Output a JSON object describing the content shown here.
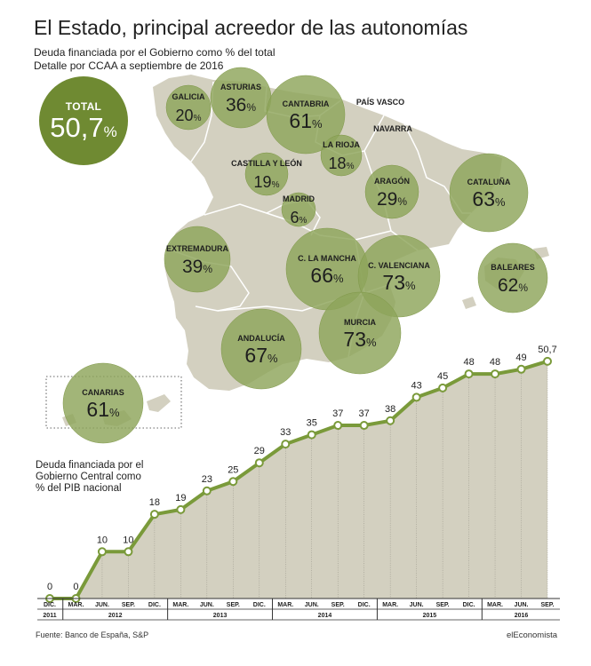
{
  "header": {
    "title": "El Estado, principal acreedor de las autonomías",
    "subtitle_line1": "Deuda financiada por el Gobierno como % del total",
    "subtitle_line2": "Detalle por CCAA a septiembre de 2016"
  },
  "total": {
    "label": "TOTAL",
    "value": "50,7",
    "unit": "%"
  },
  "map": {
    "colors": {
      "land": "#d3d0c0",
      "border": "#ffffff",
      "bubble": "#8ea55a",
      "bubble_stroke": "#7f9848",
      "plain_label": "#222222"
    },
    "regions": [
      {
        "name": "GALICIA",
        "value": "20",
        "unit": "%",
        "bubble": true
      },
      {
        "name": "ASTURIAS",
        "value": "36",
        "unit": "%",
        "bubble": true
      },
      {
        "name": "CANTABRIA",
        "value": "61",
        "unit": "%",
        "bubble": true
      },
      {
        "name": "PAÍS VASCO",
        "value": "",
        "unit": "",
        "bubble": false
      },
      {
        "name": "NAVARRA",
        "value": "",
        "unit": "",
        "bubble": false
      },
      {
        "name": "LA RIOJA",
        "value": "18",
        "unit": "%",
        "bubble": true
      },
      {
        "name": "CASTILLA Y LEÓN",
        "value": "19",
        "unit": "%",
        "bubble": true
      },
      {
        "name": "ARAGÓN",
        "value": "29",
        "unit": "%",
        "bubble": true
      },
      {
        "name": "CATALUÑA",
        "value": "63",
        "unit": "%",
        "bubble": true
      },
      {
        "name": "MADRID",
        "value": "6",
        "unit": "%",
        "bubble": true
      },
      {
        "name": "EXTREMADURA",
        "value": "39",
        "unit": "%",
        "bubble": true
      },
      {
        "name": "C. LA MANCHA",
        "value": "66",
        "unit": "%",
        "bubble": true
      },
      {
        "name": "C. VALENCIANA",
        "value": "73",
        "unit": "%",
        "bubble": true
      },
      {
        "name": "BALEARES",
        "value": "62",
        "unit": "%",
        "bubble": true
      },
      {
        "name": "ANDALUCÍA",
        "value": "67",
        "unit": "%",
        "bubble": true
      },
      {
        "name": "MURCIA",
        "value": "73",
        "unit": "%",
        "bubble": true
      },
      {
        "name": "CANARIAS",
        "value": "61",
        "unit": "%",
        "bubble": true
      }
    ]
  },
  "chart_note": {
    "line1": "Deuda financiada por el",
    "line2": "Gobierno Central como",
    "line3": "% del PIB nacional"
  },
  "chart_data": {
    "type": "area",
    "title": "",
    "ylabel": "",
    "x_labels": [
      "DIC.",
      "MAR.",
      "JUN.",
      "SEP.",
      "DIC.",
      "MAR.",
      "JUN.",
      "SEP.",
      "DIC.",
      "MAR.",
      "JUN.",
      "SEP.",
      "DIC.",
      "MAR.",
      "JUN.",
      "SEP.",
      "DIC.",
      "MAR.",
      "JUN.",
      "SEP."
    ],
    "values": [
      0,
      0,
      10,
      10,
      18,
      19,
      23,
      25,
      29,
      33,
      35,
      37,
      37,
      38,
      43,
      45,
      48,
      48,
      49,
      50.7
    ],
    "value_labels": [
      "0",
      "0",
      "10",
      "10",
      "18",
      "19",
      "23",
      "25",
      "29",
      "33",
      "35",
      "37",
      "37",
      "38",
      "43",
      "45",
      "48",
      "48",
      "49",
      "50,7"
    ],
    "years": [
      {
        "label": "2011",
        "from": 0,
        "to": 0
      },
      {
        "label": "2012",
        "from": 1,
        "to": 4
      },
      {
        "label": "2013",
        "from": 5,
        "to": 8
      },
      {
        "label": "2014",
        "from": 9,
        "to": 12
      },
      {
        "label": "2015",
        "from": 13,
        "to": 16
      },
      {
        "label": "2016",
        "from": 17,
        "to": 19
      }
    ],
    "ylim": [
      0,
      52
    ],
    "grid": false,
    "colors": {
      "line": "#7a9a3a",
      "fill": "#d3d0c0",
      "marker_fill": "#ffffff",
      "axis": "#333333"
    }
  },
  "footer": {
    "source": "Fuente: Banco de España, S&P",
    "brand": "elEconomista"
  }
}
